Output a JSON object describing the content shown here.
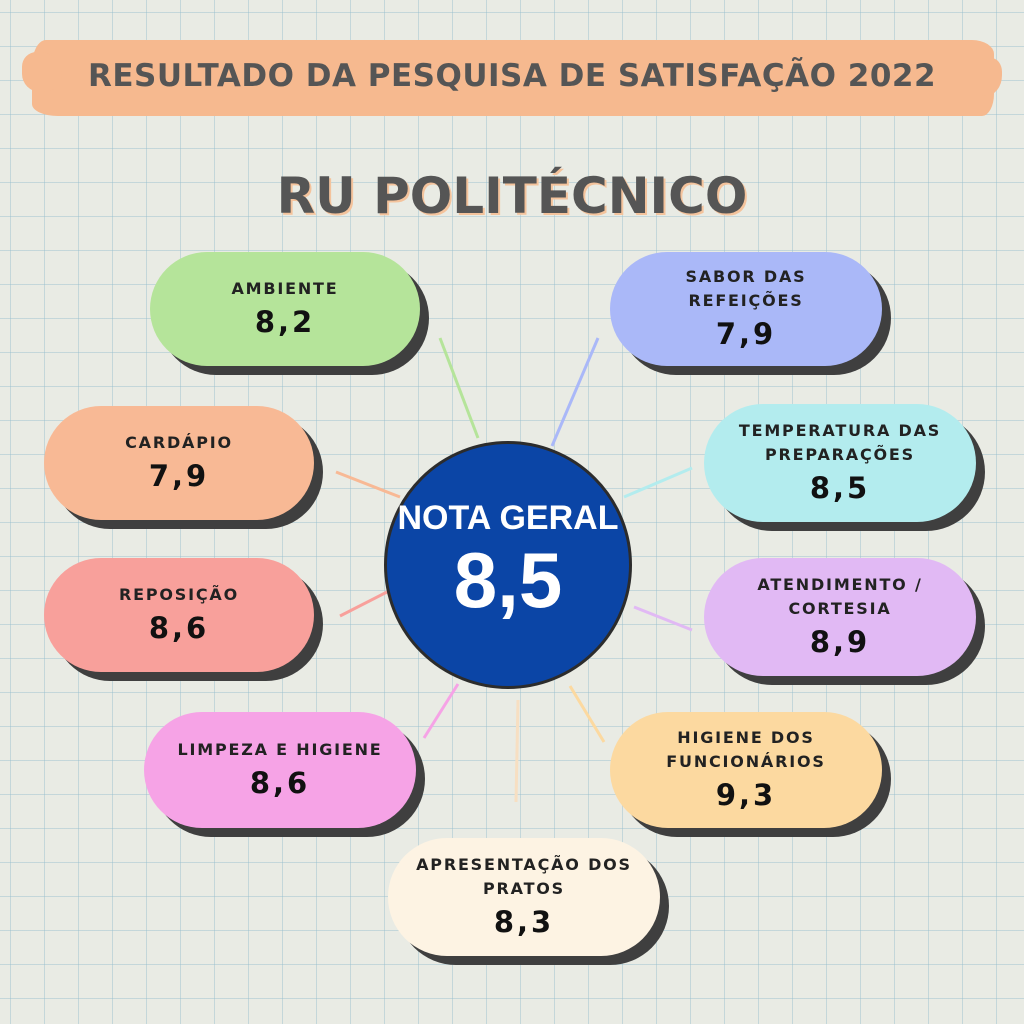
{
  "header": {
    "title": "RESULTADO DA PESQUISA DE SATISFAÇÃO 2022",
    "subtitle": "RU POLITÉCNICO"
  },
  "center": {
    "label": "NOTA GERAL",
    "value": "8,5",
    "color": "#0b45a6"
  },
  "items": [
    {
      "id": "ambiente",
      "label": "AMBIENTE",
      "value": "8,2",
      "color": "#b5e49a"
    },
    {
      "id": "sabor-refeicoes",
      "label": "SABOR DAS REFEIÇÕES",
      "value": "7,9",
      "color": "#aab8f8"
    },
    {
      "id": "cardapio",
      "label": "CARDÁPIO",
      "value": "7,9",
      "color": "#f8b995"
    },
    {
      "id": "temperatura-preparacoes",
      "label": "TEMPERATURA DAS PREPARAÇÕES",
      "value": "8,5",
      "color": "#b3ecee"
    },
    {
      "id": "reposicao",
      "label": "REPOSIÇÃO",
      "value": "8,6",
      "color": "#f8a09b"
    },
    {
      "id": "atendimento-cortesia",
      "label": "ATENDIMENTO / CORTESIA",
      "value": "8,9",
      "color": "#e1b9f4"
    },
    {
      "id": "limpeza-higiene",
      "label": "LIMPEZA E HIGIENE",
      "value": "8,6",
      "color": "#f6a3e6"
    },
    {
      "id": "higiene-funcionarios",
      "label": "HIGIENE DOS FUNCIONÁRIOS",
      "value": "9,3",
      "color": "#fcd9a0"
    },
    {
      "id": "apresentacao-pratos",
      "label": "APRESENTAÇÃO DOS PRATOS",
      "value": "8,3",
      "color": "#fdf3e3"
    }
  ]
}
